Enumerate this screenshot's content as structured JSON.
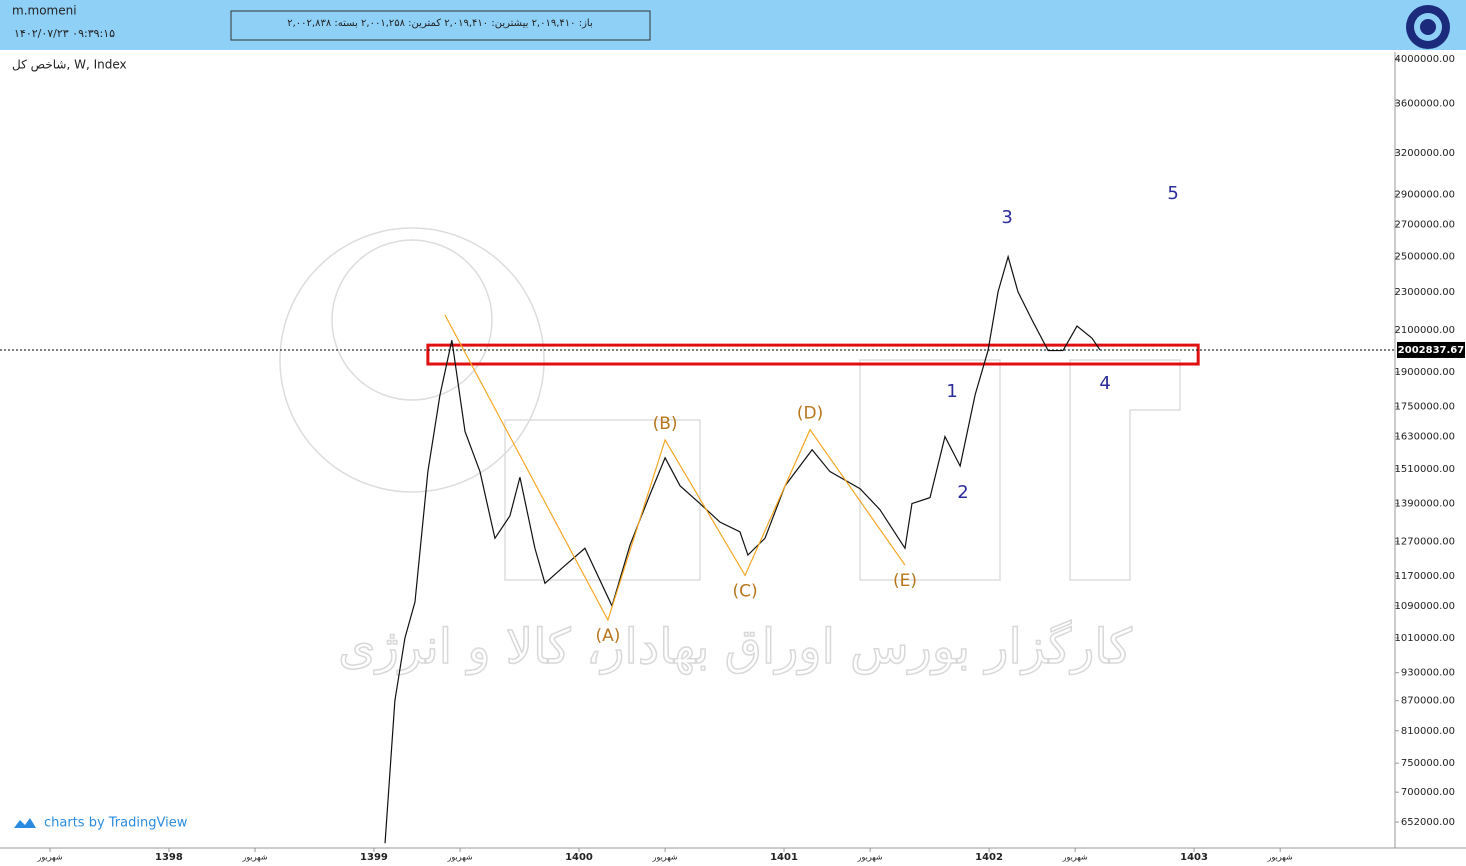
{
  "header": {
    "user": "m.momeni",
    "datetime": "۱۴۰۲/۰۷/۲۳ ۰۹:۳۹:۱۵",
    "ohlc_info": "باز: ۲,۰۱۹,۴۱۰   بیشترین: ۲,۰۱۹,۴۱۰   کمترین: ۲,۰۰۱,۲۵۸   بسته: ۲,۰۰۲,۸۳۸"
  },
  "chart_data": {
    "type": "line",
    "symbol": "شاخص کل, W, Index",
    "log_scale": true,
    "grid": false,
    "xlim": [
      1397.176,
      1403.98
    ],
    "ylim": [
      613000,
      4067000
    ],
    "xticks": [
      {
        "value": 1397.42,
        "label": "شهریور"
      },
      1398,
      {
        "value": 1398.42,
        "label": "شهریور"
      },
      1399,
      {
        "value": 1399.42,
        "label": "شهریور"
      },
      1400,
      {
        "value": 1400.42,
        "label": "شهریور"
      },
      1401,
      {
        "value": 1401.42,
        "label": "شهریور"
      },
      1402,
      {
        "value": 1402.42,
        "label": "شهریور"
      },
      1403,
      {
        "value": 1403.42,
        "label": "شهریور"
      }
    ],
    "yticks": [
      {
        "value": 4000000,
        "label": "4000000.00"
      },
      {
        "value": 3600000,
        "label": "3600000.00"
      },
      {
        "value": 3200000,
        "label": "3200000.00"
      },
      {
        "value": 2900000,
        "label": "2900000.00"
      },
      {
        "value": 2700000,
        "label": "2700000.00"
      },
      {
        "value": 2500000,
        "label": "2500000.00"
      },
      {
        "value": 2300000,
        "label": "2300000.00"
      },
      {
        "value": 2100000,
        "label": "2100000.00"
      },
      {
        "value": 1900000,
        "label": "1900000.00"
      },
      {
        "value": 1750000,
        "label": "1750000.00"
      },
      {
        "value": 1630000,
        "label": "1630000.00"
      },
      {
        "value": 1510000,
        "label": "1510000.00"
      },
      {
        "value": 1390000,
        "label": "1390000.00"
      },
      {
        "value": 1270000,
        "label": "1270000.00"
      },
      {
        "value": 1170000,
        "label": "1170000.00"
      },
      {
        "value": 1090000,
        "label": "1090000.00"
      },
      {
        "value": 1010000,
        "label": "1010000.00"
      },
      {
        "value": 930000,
        "label": "930000.00"
      },
      {
        "value": 870000,
        "label": "870000.00"
      },
      {
        "value": 810000,
        "label": "810000.00"
      },
      {
        "value": 750000,
        "label": "750000.00"
      },
      {
        "value": 700000,
        "label": "700000.00"
      },
      {
        "value": 652000,
        "label": "652000.00"
      }
    ],
    "series": [
      {
        "color": "#111111",
        "x": [
          1399.054,
          1399.102,
          1399.151,
          1399.2,
          1399.263,
          1399.322,
          1399.38,
          1399.444,
          1399.517,
          1399.59,
          1399.663,
          1399.712,
          1399.785,
          1399.834,
          1399.932,
          1400.029,
          1400.161,
          1400.249,
          1400.346,
          1400.42,
          1400.493,
          1400.59,
          1400.688,
          1400.785,
          1400.824,
          1400.907,
          1401.005,
          1401.137,
          1401.224,
          1401.371,
          1401.468,
          1401.59,
          1401.624,
          1401.712,
          1401.785,
          1401.859,
          1401.932,
          1401.995,
          1402.044,
          1402.093,
          1402.141,
          1402.21,
          1402.288,
          1402.361,
          1402.429,
          1402.502,
          1402.541
        ],
        "values": [
          620000,
          870000,
          1010000,
          1100000,
          1500000,
          1800000,
          2050000,
          1650000,
          1500000,
          1280000,
          1350000,
          1480000,
          1250000,
          1150000,
          1200000,
          1250000,
          1090000,
          1260000,
          1420000,
          1550000,
          1450000,
          1390000,
          1330000,
          1300000,
          1230000,
          1280000,
          1450000,
          1580000,
          1500000,
          1440000,
          1370000,
          1250000,
          1390000,
          1410000,
          1630000,
          1520000,
          1800000,
          2000000,
          2300000,
          2500000,
          2300000,
          2150000,
          2000000,
          2000000,
          2120000,
          2060000,
          2002837.67
        ]
      }
    ],
    "waves": {
      "color": "#f5a623",
      "label_color": "#b8761c",
      "labels": [
        null,
        "(A)",
        "(B)",
        "(C)",
        "(D)",
        "(E)"
      ],
      "x": [
        1399.346,
        1400.141,
        1400.42,
        1400.81,
        1401.127,
        1401.59
      ],
      "values": [
        2177000,
        1054000,
        1617000,
        1172000,
        1657000,
        1201000
      ]
    },
    "impulse": {
      "color": "#2b2b9a",
      "labels": [
        "1",
        "2",
        "3",
        "4",
        "5"
      ],
      "x": [
        1401.82,
        1401.873,
        1402.088,
        1402.566,
        1402.898
      ],
      "values": [
        1812000,
        1425000,
        2741000,
        1847000,
        2902000
      ]
    },
    "zone": {
      "color": "#e01010",
      "x": [
        1399.263,
        1403.02
      ],
      "values": [
        1937000,
        2026000
      ]
    },
    "credit": "charts by TradingView",
    "watermark": "کارگزار بورس اوراق بهادار، کالا و انرژی"
  }
}
